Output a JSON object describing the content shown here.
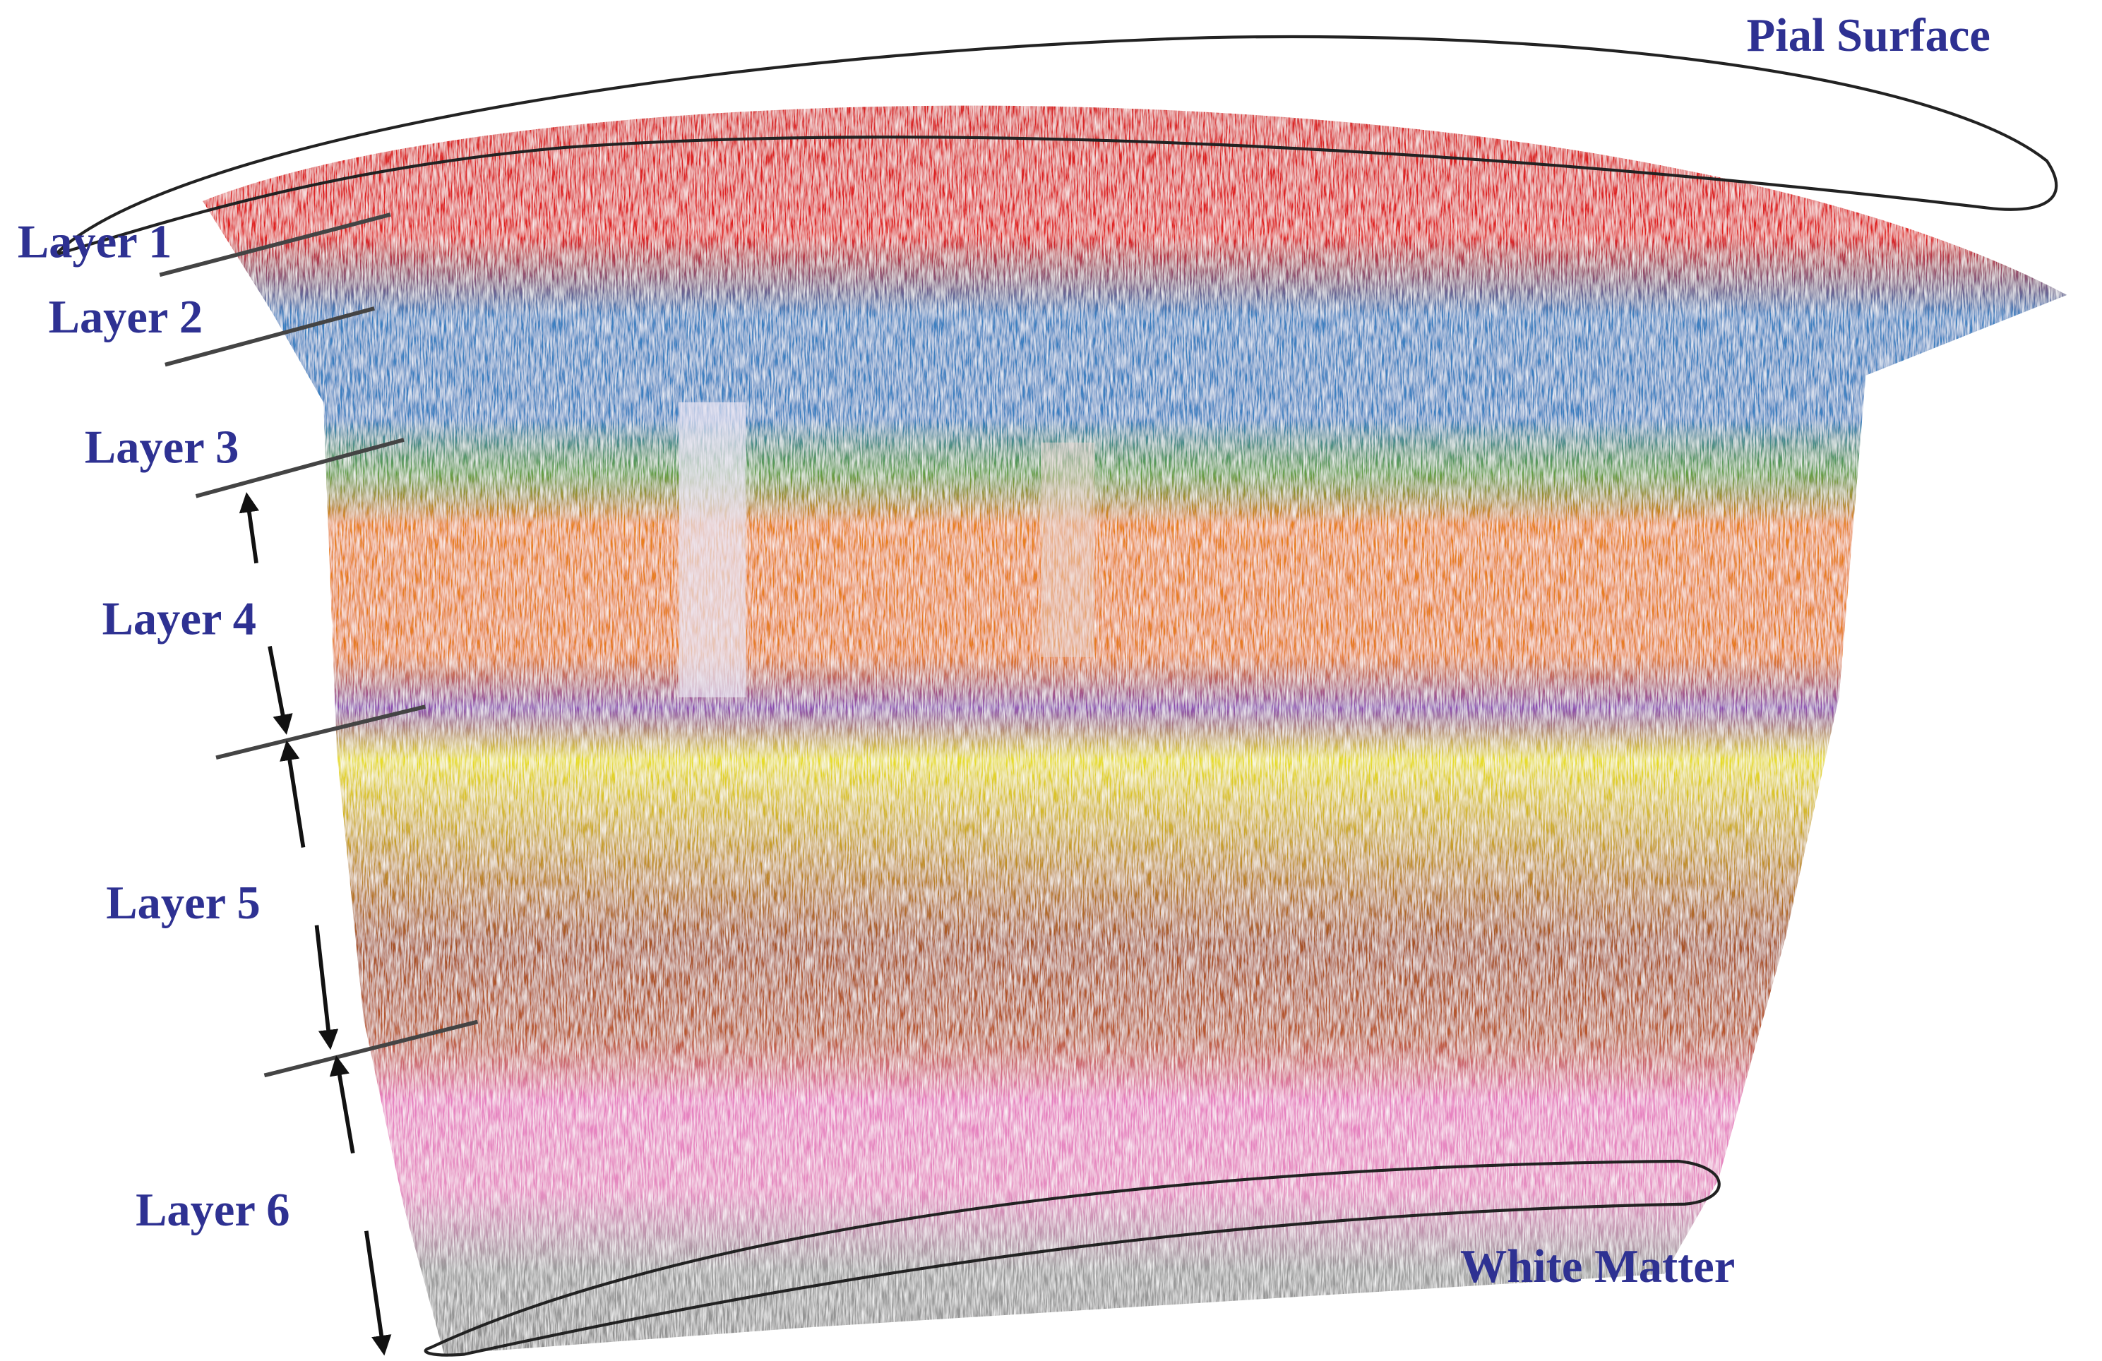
{
  "labels": {
    "pial_surface": "Pial Surface",
    "white_matter": "White Matter"
  },
  "layers": [
    "Layer 1",
    "Layer 2",
    "Layer 3",
    "Layer 4",
    "Layer 5",
    "Layer 6"
  ]
}
